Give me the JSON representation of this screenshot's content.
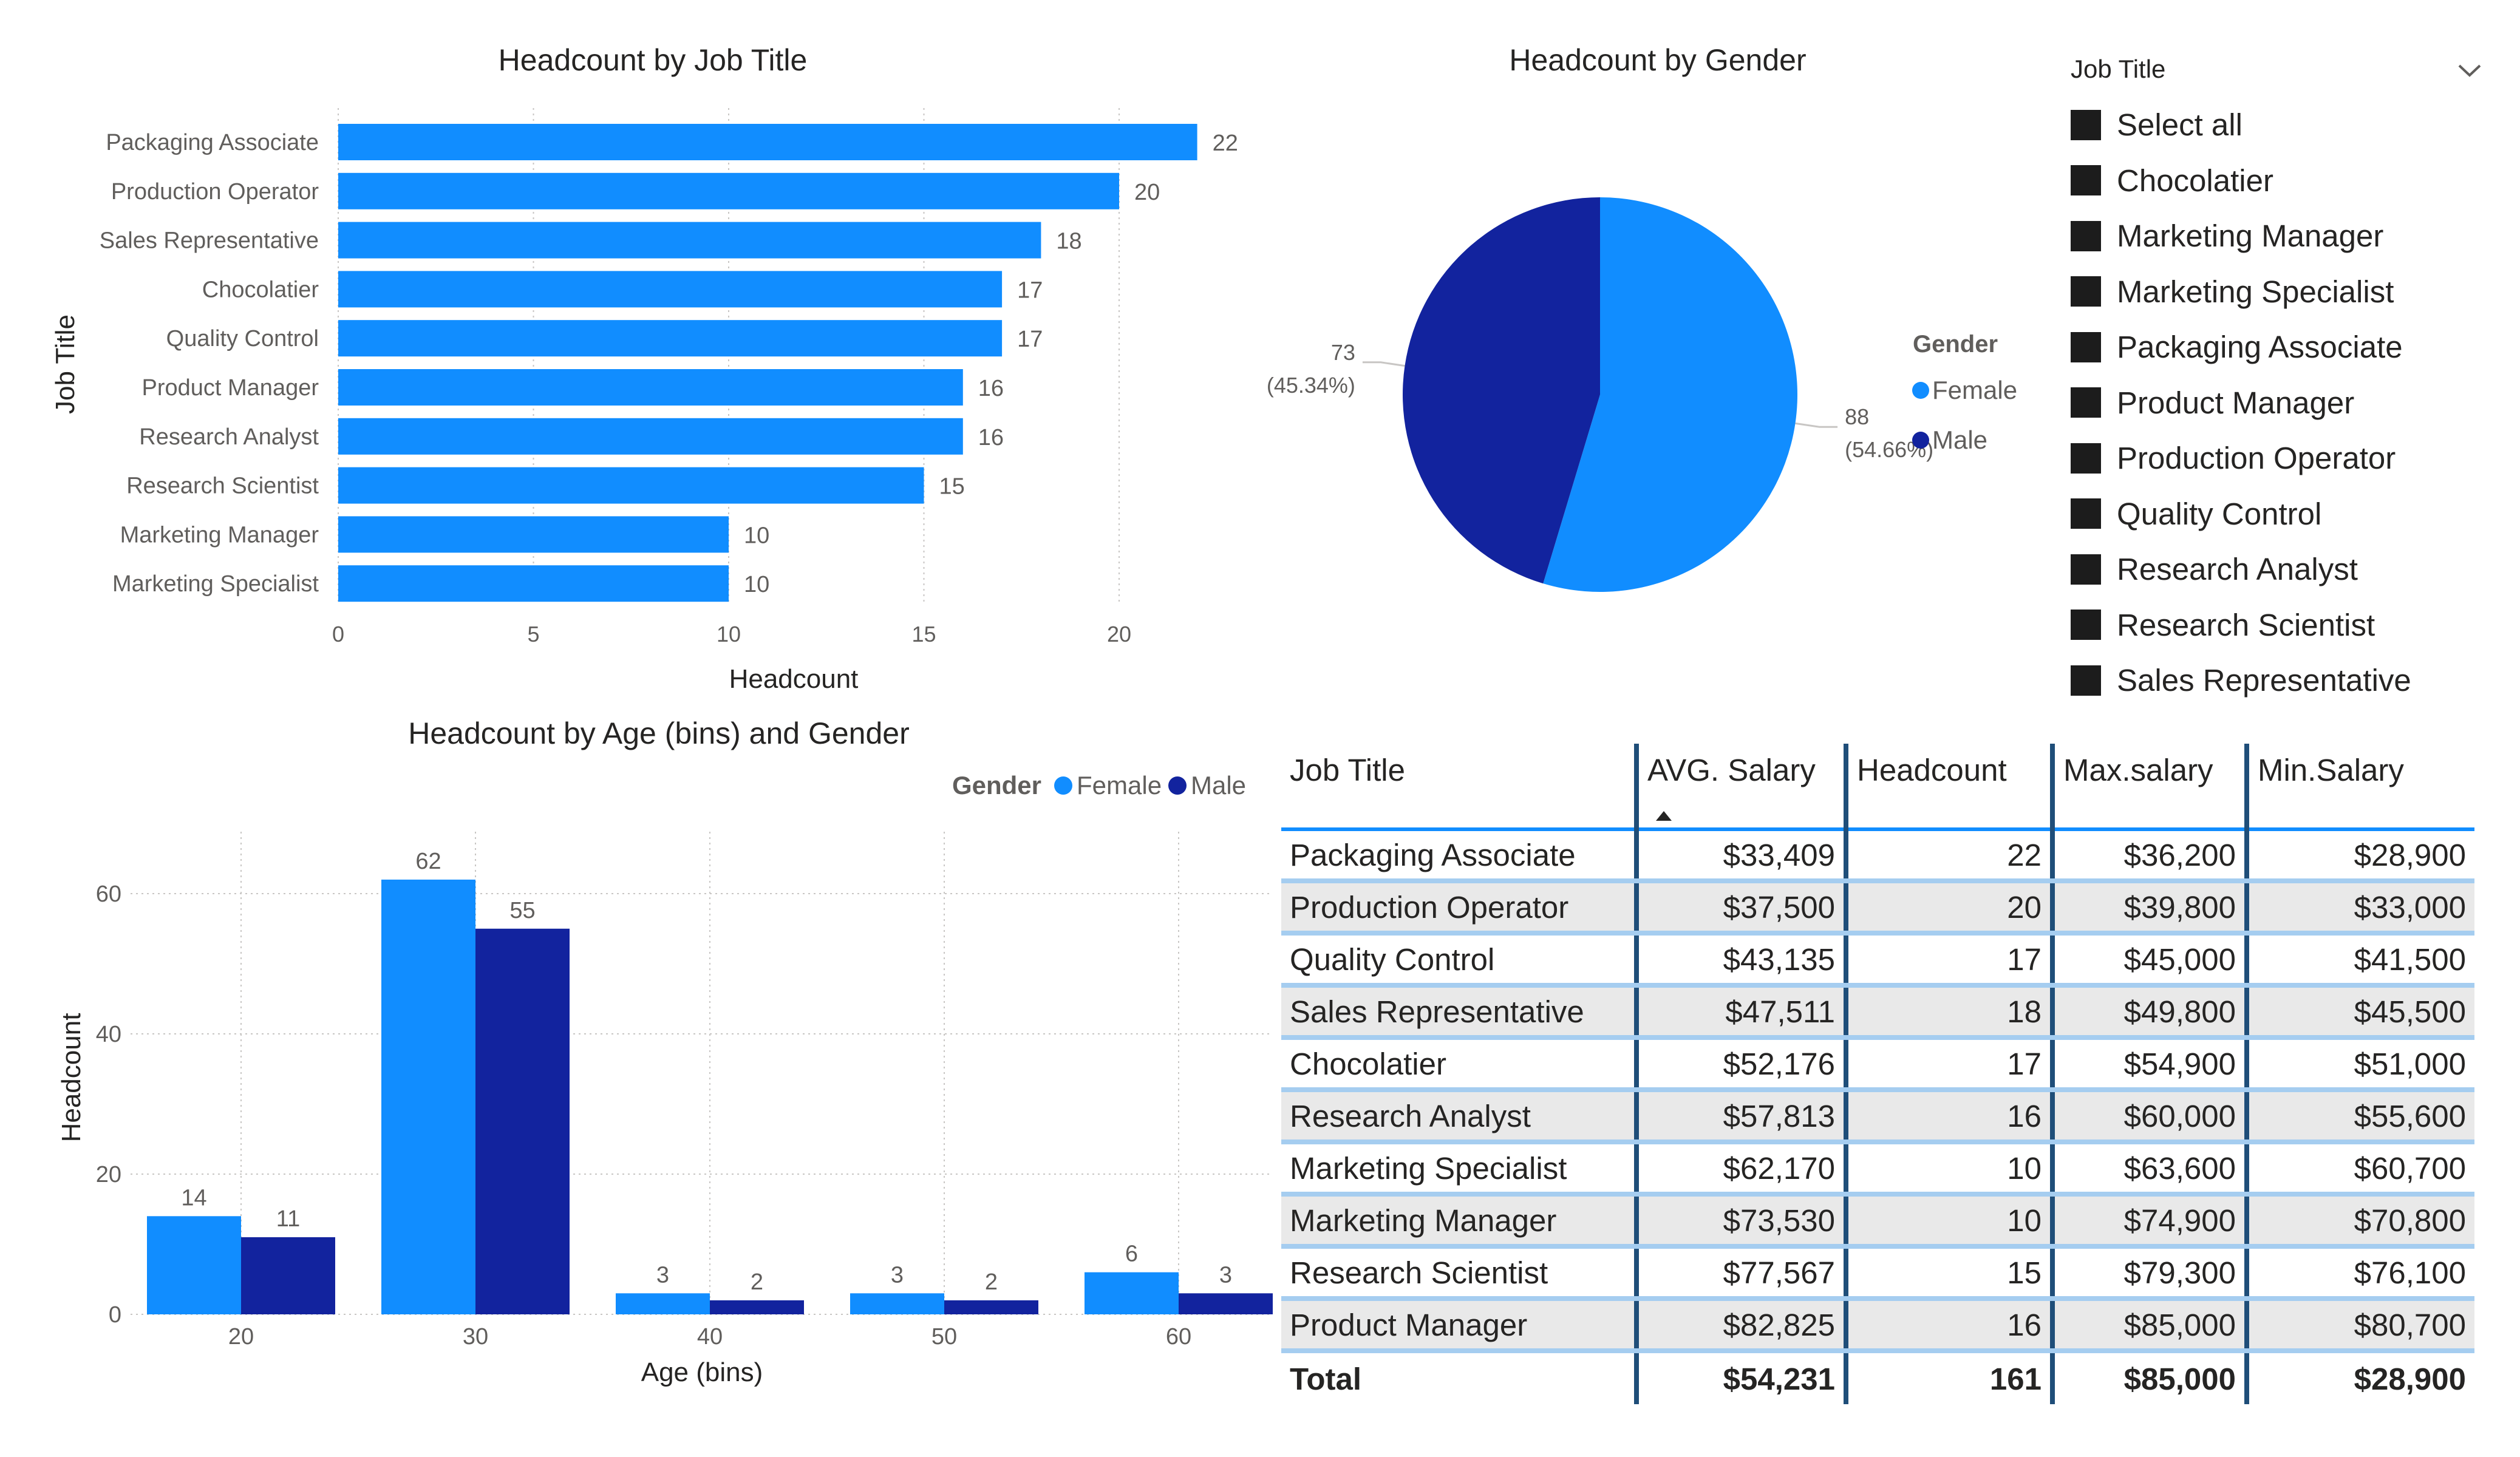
{
  "colors": {
    "female": "#118DFF",
    "male": "#12239E",
    "bar": "#118DFF",
    "text": "#252423",
    "muted": "#605E5C",
    "grid": "#C8C6C4",
    "table_header_rule": "#118DFF",
    "table_col_rule": "#1F4E79",
    "table_row_rule": "#A5CDF0",
    "table_band": "#E9E9E9"
  },
  "chart_data": [
    {
      "type": "bar",
      "orientation": "horizontal",
      "title": "Headcount by Job Title",
      "xlabel": "Headcount",
      "ylabel": "Job Title",
      "categories": [
        "Packaging Associate",
        "Production Operator",
        "Sales Representative",
        "Chocolatier",
        "Quality Control",
        "Product Manager",
        "Research Analyst",
        "Research Scientist",
        "Marketing Manager",
        "Marketing Specialist"
      ],
      "values": [
        22,
        20,
        18,
        17,
        17,
        16,
        16,
        15,
        10,
        10
      ],
      "xticks": [
        0,
        5,
        10,
        15,
        20
      ],
      "xlim": [
        0,
        22
      ],
      "grid": true
    },
    {
      "type": "pie",
      "title": "Headcount by Gender",
      "legend_title": "Gender",
      "legend_position": "right",
      "slices": [
        {
          "name": "Female",
          "value": 88,
          "label_value": "88",
          "label_pct": "(54.66%)"
        },
        {
          "name": "Male",
          "value": 73,
          "label_value": "73",
          "label_pct": "(45.34%)"
        }
      ]
    },
    {
      "type": "bar",
      "orientation": "vertical",
      "title": "Headcount by Age (bins) and Gender",
      "xlabel": "Age (bins)",
      "ylabel": "Headcount",
      "legend_title": "Gender",
      "legend_position": "top-right",
      "categories": [
        "20",
        "30",
        "40",
        "50",
        "60"
      ],
      "series": [
        {
          "name": "Female",
          "values": [
            14,
            62,
            3,
            3,
            6
          ]
        },
        {
          "name": "Male",
          "values": [
            11,
            55,
            2,
            2,
            3
          ]
        }
      ],
      "yticks": [
        0,
        20,
        40,
        60
      ],
      "ylim": [
        0,
        70
      ],
      "grid": true
    }
  ],
  "slicer": {
    "title": "Job Title",
    "items": [
      "Select all",
      "Chocolatier",
      "Marketing Manager",
      "Marketing Specialist",
      "Packaging Associate",
      "Product Manager",
      "Production Operator",
      "Quality Control",
      "Research Analyst",
      "Research Scientist",
      "Sales Representative"
    ]
  },
  "table": {
    "headers": [
      "Job Title",
      "AVG. Salary",
      "Headcount",
      "Max.salary",
      "Min.Salary"
    ],
    "sorted_column": "AVG. Salary",
    "sort_direction": "ascending",
    "rows": [
      [
        "Packaging Associate",
        "$33,409",
        "22",
        "$36,200",
        "$28,900"
      ],
      [
        "Production Operator",
        "$37,500",
        "20",
        "$39,800",
        "$33,000"
      ],
      [
        "Quality Control",
        "$43,135",
        "17",
        "$45,000",
        "$41,500"
      ],
      [
        "Sales Representative",
        "$47,511",
        "18",
        "$49,800",
        "$45,500"
      ],
      [
        "Chocolatier",
        "$52,176",
        "17",
        "$54,900",
        "$51,000"
      ],
      [
        "Research Analyst",
        "$57,813",
        "16",
        "$60,000",
        "$55,600"
      ],
      [
        "Marketing Specialist",
        "$62,170",
        "10",
        "$63,600",
        "$60,700"
      ],
      [
        "Marketing Manager",
        "$73,530",
        "10",
        "$74,900",
        "$70,800"
      ],
      [
        "Research Scientist",
        "$77,567",
        "15",
        "$79,300",
        "$76,100"
      ],
      [
        "Product Manager",
        "$82,825",
        "16",
        "$85,000",
        "$80,700"
      ]
    ],
    "total": [
      "Total",
      "$54,231",
      "161",
      "$85,000",
      "$28,900"
    ]
  }
}
